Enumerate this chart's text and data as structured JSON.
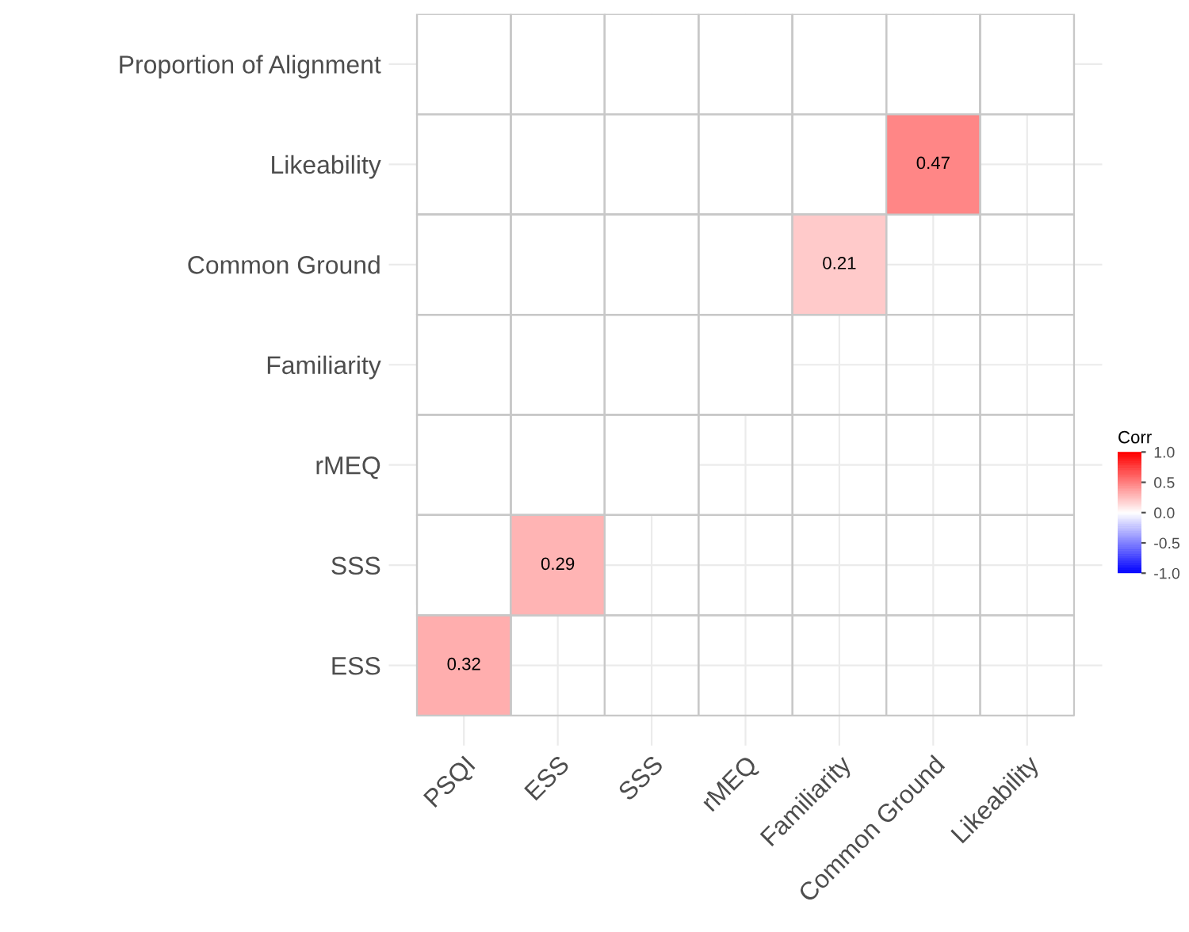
{
  "chart_data": {
    "type": "heatmap",
    "categories": [
      "PSQI",
      "ESS",
      "SSS",
      "rMEQ",
      "Familiarity",
      "Common Ground",
      "Likeability"
    ],
    "y_categories": [
      "Proportion of Alignment",
      "Likeability",
      "Common Ground",
      "Familiarity",
      "rMEQ",
      "SSS",
      "ESS"
    ],
    "cells": [
      [
        null,
        null,
        null,
        null,
        null,
        null,
        null
      ],
      [
        null,
        null,
        null,
        null,
        null,
        0.47,
        null
      ],
      [
        null,
        null,
        null,
        null,
        0.21,
        null,
        null
      ],
      [
        null,
        null,
        null,
        null,
        null,
        null,
        null
      ],
      [
        null,
        null,
        null,
        null,
        null,
        null,
        null
      ],
      [
        null,
        0.29,
        null,
        null,
        null,
        null,
        null
      ],
      [
        0.32,
        null,
        null,
        null,
        null,
        null,
        null
      ]
    ],
    "data_labels": true,
    "clabel": "Corr",
    "clim": [
      -1.0,
      1.0
    ],
    "cticks": [
      {
        "value": -1.0,
        "label": "-1.0"
      },
      {
        "value": -0.5,
        "label": "-0.5"
      },
      {
        "value": 0.0,
        "label": "0.0"
      },
      {
        "value": 0.5,
        "label": "0.5"
      },
      {
        "value": 1.0,
        "label": "1.0"
      }
    ],
    "colors": [
      "#0000ff",
      "#ffffff",
      "#ff0000"
    ],
    "grid": true
  }
}
